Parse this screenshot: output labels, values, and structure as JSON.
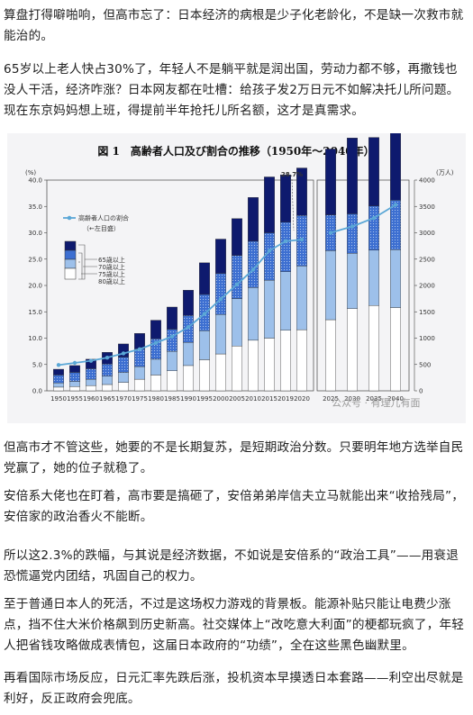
{
  "article": {
    "p1": "算盘打得噼啪响，但高市忘了：日本经济的病根是少子化老龄化，不是缺一次救市就能治的。",
    "p2": "65岁以上老人快占30%了，年轻人不是躺平就是润出国，劳动力都不够，再撒钱也没人干活，经济咋涨？日本网友都在吐槽：给孩子发2万日元不如解决托儿所问题。现在东京妈妈想上班，得提前半年抢托儿所名额，这才是真需求。",
    "p3": "但高市才不管这些，她要的不是长期复苏，是短期政治分数。只要明年地方选举自民党赢了，她的位子就稳了。",
    "p4": "安倍系大佬也在盯着，高市要是搞砸了，安倍弟弟岸信夫立马就能出来“收拾残局”，安倍家的政治香火不能断。",
    "p5": "所以这2.3%的跌幅，与其说是经济数据，不如说是安倍系的“政治工具”——用衰退恐慌逼党内团结，巩固自己的权力。",
    "p6": "至于普通日本人的死活，不过是这场权力游戏的背景板。能源补贴只能让电费少涨点，挡不住大米价格飙到历史新高。社交媒体上“改吃意大利面”的梗都玩疯了，年轻人把省钱攻略做成表情包，这届日本政府的“功绩”，全在这些黑色幽默里。",
    "p7": "再看国际市场反应，日元汇率先跌后涨，投机资本早摸透日本套路——利空出尽就是利好，反正政府会兜底。"
  },
  "watermark": "公众号 · 有理儿有面",
  "colors": {
    "age_80_plus": "#ffffff",
    "age_75_79": "#9dc0ea",
    "age_70_74": "#3d6fd1",
    "age_65_69": "#0e1a6e",
    "ratio_line": "#5aa7d6",
    "background": "#f4f4f6"
  },
  "chart_data": {
    "type": "bar",
    "title": "図 1　高齢者人口及び割合の推移（1950年～2040年）",
    "left_unit": "(%)",
    "right_unit": "(万人)",
    "left_ylim": [
      0,
      40
    ],
    "right_ylim": [
      0,
      4000
    ],
    "left_ticks": [
      "0.0",
      "5.0",
      "10.0",
      "15.0",
      "20.0",
      "25.0",
      "30.0",
      "35.0",
      "40.0"
    ],
    "right_ticks": [
      "0",
      "500",
      "1000",
      "1500",
      "2000",
      "2500",
      "3000",
      "3500",
      "4000"
    ],
    "grid": false,
    "legend_position": "top-left",
    "legend": {
      "line_label": "高齢者人口の割合",
      "line_sub": "（←左目盛）",
      "labels": [
        "65歳以上",
        "70歳以上",
        "75歳以上",
        "80歳以上"
      ]
    },
    "annotation": "28.7%",
    "categories": [
      "1950",
      "1955",
      "1960",
      "1965",
      "1970",
      "1975",
      "1980",
      "1985",
      "1990",
      "1995",
      "2000",
      "2005",
      "2010",
      "2015",
      "2019",
      "2020",
      "2025",
      "2030",
      "2035",
      "2040"
    ],
    "series": [
      {
        "name": "80歳以上",
        "values": [
          70,
          80,
          100,
          120,
          160,
          220,
          300,
          380,
          480,
          590,
          700,
          850,
          960,
          1000,
          1150,
          1160,
          1350,
          1560,
          1620,
          1580
        ]
      },
      {
        "name": "75～79歳",
        "values": [
          80,
          100,
          120,
          160,
          190,
          240,
          300,
          370,
          440,
          550,
          750,
          900,
          1000,
          1100,
          1110,
          1210,
          1310,
          1050,
          1050,
          1100
        ]
      },
      {
        "name": "70～74歳",
        "values": [
          150,
          170,
          200,
          230,
          290,
          340,
          390,
          420,
          510,
          690,
          780,
          820,
          880,
          900,
          940,
          960,
          680,
          750,
          840,
          940
        ]
      },
      {
        "name": "65～69歳",
        "values": [
          110,
          130,
          180,
          220,
          250,
          290,
          350,
          420,
          480,
          600,
          650,
          700,
          830,
          1060,
          900,
          900,
          1250,
          1440,
          1300,
          1340
        ]
      }
    ],
    "ratio_line": {
      "name": "高齢者人口の割合",
      "values": [
        4.9,
        5.3,
        5.7,
        6.3,
        7.1,
        7.9,
        9.1,
        10.3,
        12.1,
        14.6,
        17.4,
        20.2,
        23.0,
        26.6,
        28.4,
        28.7,
        30.0,
        31.2,
        32.8,
        35.3
      ]
    }
  }
}
